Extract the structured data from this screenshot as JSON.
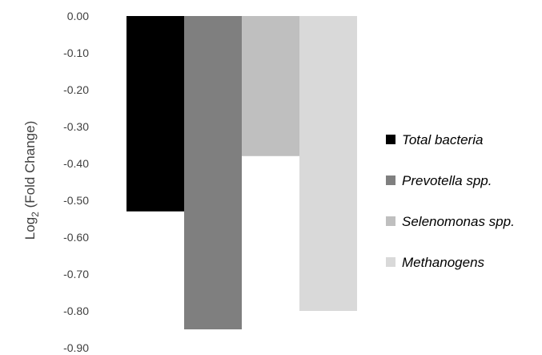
{
  "chart_data": {
    "type": "bar",
    "title": "",
    "ylabel": {
      "prefix": "Log",
      "subscript": "2",
      "suffix": " (Fold Change)"
    },
    "xlabel": "",
    "ylim": [
      -0.9,
      0.0
    ],
    "yticks": [
      "0.00",
      "-0.10",
      "-0.20",
      "-0.30",
      "-0.40",
      "-0.50",
      "-0.60",
      "-0.70",
      "-0.80",
      "-0.90"
    ],
    "grid": false,
    "legend_position": "right",
    "series": [
      {
        "name": "Total bacteria",
        "value": -0.53,
        "color": "#000000"
      },
      {
        "name": "Prevotella spp.",
        "value": -0.85,
        "color": "#7f7f7f"
      },
      {
        "name": "Selenomonas spp.",
        "value": -0.38,
        "color": "#bfbfbf"
      },
      {
        "name": "Methanogens",
        "value": -0.8,
        "color": "#d9d9d9"
      }
    ]
  }
}
